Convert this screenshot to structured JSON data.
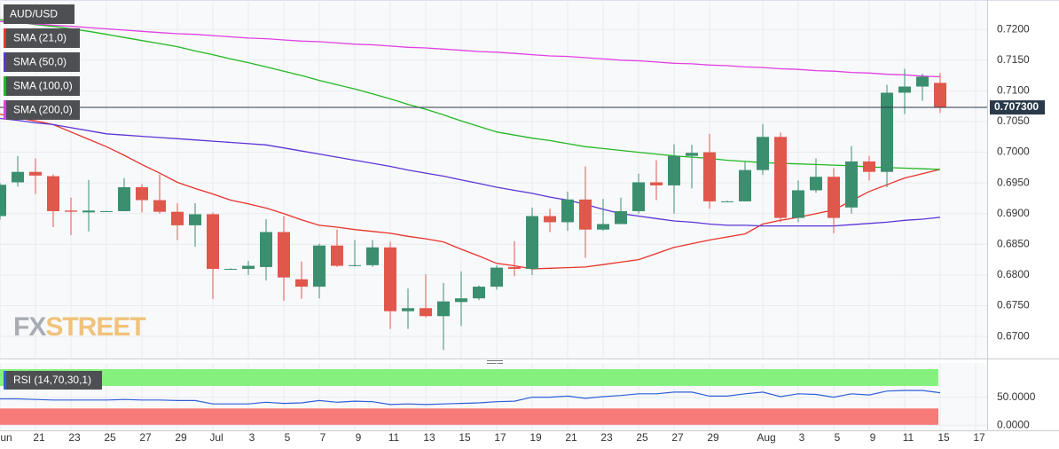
{
  "chart_data": [
    {
      "type": "candlestick",
      "title": "AUD/USD",
      "watermark": [
        "FX",
        "STREET"
      ],
      "categories": [
        "Jun",
        null,
        "21",
        null,
        "23",
        null,
        "25",
        null,
        "27",
        null,
        "29",
        null,
        "Jul",
        null,
        "3",
        null,
        "5",
        null,
        "7",
        null,
        "9",
        null,
        "11",
        null,
        "13",
        null,
        "15",
        null,
        "17",
        null,
        "19",
        null,
        "21",
        null,
        "23",
        null,
        "25",
        null,
        "27",
        null,
        "29",
        null,
        null,
        "Aug",
        null,
        "3",
        null,
        "5",
        null,
        "9",
        null,
        "11",
        null,
        "15",
        null,
        "17"
      ],
      "open": [
        0.6896,
        0.6951,
        0.6968,
        0.6961,
        0.6905,
        0.6902,
        0.6904,
        0.6904,
        0.6943,
        0.6922,
        0.6903,
        0.6881,
        0.6899,
        0.681,
        0.681,
        0.6813,
        0.687,
        0.6793,
        0.6781,
        0.6848,
        0.6816,
        0.6816,
        0.6845,
        0.6741,
        0.6746,
        0.6733,
        0.6756,
        0.6762,
        0.6781,
        0.6813,
        0.681,
        0.6896,
        0.6886,
        0.6923,
        0.6874,
        0.6883,
        0.6904,
        0.6951,
        0.6946,
        0.6994,
        0.7,
        0.692,
        0.692,
        0.6971,
        0.7025,
        0.6893,
        0.6938,
        0.696,
        0.691,
        0.6985,
        0.6968,
        0.7097,
        0.7107,
        0.7113,
        null,
        null
      ],
      "high": [
        0.695,
        0.6994,
        0.699,
        0.6964,
        0.6926,
        0.6955,
        0.6905,
        0.6958,
        0.6948,
        0.6964,
        0.6917,
        0.6917,
        0.6902,
        0.6811,
        0.6823,
        0.6891,
        0.6896,
        0.6822,
        0.6851,
        0.6874,
        0.6857,
        0.6857,
        0.6854,
        0.6778,
        0.6801,
        0.6787,
        0.6806,
        0.6783,
        0.6816,
        0.6855,
        0.691,
        0.6908,
        0.6936,
        0.6977,
        0.6924,
        0.6926,
        0.6965,
        0.6987,
        0.7013,
        0.7012,
        0.703,
        0.6921,
        0.6984,
        0.7046,
        0.7032,
        0.6954,
        0.699,
        0.6974,
        0.701,
        0.6994,
        0.711,
        0.7136,
        0.7128,
        0.7129,
        null,
        null
      ],
      "low": [
        0.689,
        0.6944,
        0.6932,
        0.6878,
        0.6865,
        0.6871,
        0.6903,
        0.6904,
        0.6902,
        0.69,
        0.6857,
        0.6846,
        0.6761,
        0.6809,
        0.68,
        0.6791,
        0.6758,
        0.6761,
        0.6762,
        0.6813,
        0.6814,
        0.6813,
        0.6712,
        0.6712,
        0.6731,
        0.6678,
        0.6717,
        0.6759,
        0.6776,
        0.6798,
        0.68,
        0.687,
        0.6872,
        0.6828,
        0.6872,
        0.6883,
        0.69,
        0.6922,
        0.69,
        0.6941,
        0.6908,
        0.6919,
        0.692,
        0.6963,
        0.6886,
        0.6886,
        0.6934,
        0.6868,
        0.69,
        0.6954,
        0.6943,
        0.7062,
        0.7084,
        0.7064,
        null,
        null
      ],
      "close": [
        0.6947,
        0.6968,
        0.6962,
        0.6904,
        0.6903,
        0.6905,
        0.6904,
        0.6943,
        0.6922,
        0.6903,
        0.6881,
        0.6899,
        0.681,
        0.681,
        0.6815,
        0.687,
        0.6796,
        0.6781,
        0.6848,
        0.6815,
        0.6816,
        0.6845,
        0.6741,
        0.6746,
        0.6733,
        0.6757,
        0.6762,
        0.6781,
        0.6812,
        0.681,
        0.6896,
        0.6886,
        0.6923,
        0.6874,
        0.6883,
        0.6904,
        0.6951,
        0.6946,
        0.6994,
        0.6999,
        0.692,
        0.692,
        0.6971,
        0.7025,
        0.6893,
        0.6938,
        0.696,
        0.6893,
        0.6985,
        0.6968,
        0.7097,
        0.7107,
        0.7123,
        0.7073,
        null,
        null
      ],
      "up_color": "#3b8f6e",
      "down_color": "#e0574c",
      "series": [
        {
          "name": "SMA (21,0)",
          "color": "#e8322a",
          "values": [
            0.7062,
            0.7056,
            0.7051,
            0.7045,
            0.7033,
            0.7021,
            0.7009,
            0.6995,
            0.698,
            0.6966,
            0.6951,
            0.6941,
            0.6932,
            0.6922,
            0.6916,
            0.6909,
            0.69,
            0.689,
            0.6881,
            0.6878,
            0.6874,
            0.6871,
            0.6868,
            0.6863,
            0.6859,
            0.6854,
            0.6842,
            0.6831,
            0.6819,
            0.6815,
            0.681,
            0.6811,
            0.6812,
            0.6813,
            0.6817,
            0.6821,
            0.6825,
            0.6835,
            0.6845,
            0.6851,
            0.6857,
            0.6862,
            0.6867,
            0.6883,
            0.6889,
            0.6894,
            0.69,
            0.6906,
            0.6921,
            0.6936,
            0.6947,
            0.6958,
            0.6965,
            0.6972,
            null,
            null
          ]
        },
        {
          "name": "SMA (50,0)",
          "color": "#5b34d6",
          "values": [
            0.7055,
            0.7052,
            0.7048,
            0.7045,
            0.704,
            0.7035,
            0.703,
            0.7028,
            0.7026,
            0.7024,
            0.7022,
            0.702,
            0.7018,
            0.7016,
            0.7014,
            0.7012,
            0.7007,
            0.7002,
            0.6997,
            0.6992,
            0.6987,
            0.6982,
            0.6977,
            0.6971,
            0.6966,
            0.6961,
            0.6955,
            0.6949,
            0.6943,
            0.6938,
            0.6933,
            0.6927,
            0.6922,
            0.6915,
            0.6907,
            0.69,
            0.6896,
            0.6892,
            0.6888,
            0.6886,
            0.6883,
            0.6881,
            0.6881,
            0.688,
            0.688,
            0.688,
            0.688,
            0.688,
            0.6882,
            0.6884,
            0.6886,
            0.6889,
            0.6891,
            0.6894,
            null,
            null
          ]
        },
        {
          "name": "SMA (100,0)",
          "color": "#22b822",
          "values": [
            0.7216,
            0.7212,
            0.7208,
            0.7205,
            0.7201,
            0.7197,
            0.7192,
            0.7187,
            0.7182,
            0.7177,
            0.7172,
            0.7165,
            0.7159,
            0.7152,
            0.7146,
            0.7139,
            0.7132,
            0.7125,
            0.7117,
            0.711,
            0.7103,
            0.7095,
            0.7087,
            0.7078,
            0.707,
            0.7061,
            0.7051,
            0.7042,
            0.7033,
            0.7028,
            0.7023,
            0.7019,
            0.7014,
            0.7009,
            0.7006,
            0.7003,
            0.7,
            0.6997,
            0.6994,
            0.6992,
            0.699,
            0.6987,
            0.6985,
            0.6983,
            0.6982,
            0.6981,
            0.698,
            0.6979,
            0.6978,
            0.6976,
            0.6975,
            0.6974,
            0.6973,
            0.6972,
            null,
            null
          ]
        },
        {
          "name": "SMA (200,0)",
          "color": "#e040e0",
          "values": [
            0.7213,
            0.7211,
            0.7209,
            0.7207,
            0.7205,
            0.7203,
            0.7201,
            0.7199,
            0.7197,
            0.7195,
            0.7193,
            0.7192,
            0.719,
            0.7188,
            0.7186,
            0.7185,
            0.7183,
            0.7181,
            0.718,
            0.7178,
            0.7176,
            0.7175,
            0.7173,
            0.7171,
            0.717,
            0.7168,
            0.7166,
            0.7164,
            0.7163,
            0.7161,
            0.7159,
            0.7157,
            0.7156,
            0.7154,
            0.7152,
            0.715,
            0.7149,
            0.7147,
            0.7145,
            0.7144,
            0.7142,
            0.7141,
            0.7139,
            0.7138,
            0.7136,
            0.7135,
            0.7133,
            0.7132,
            0.713,
            0.7129,
            0.7127,
            0.7126,
            0.7124,
            0.7123,
            null,
            null
          ]
        }
      ],
      "last_price": 0.7073,
      "last_price_label": "0.707300",
      "last_price_color": "#2b3a4a",
      "ylim": [
        0.6664,
        0.7248
      ],
      "yticks": [
        {
          "value": 0.72,
          "label": "0.7200"
        },
        {
          "value": 0.715,
          "label": "0.7150"
        },
        {
          "value": 0.71,
          "label": "0.7100"
        },
        {
          "value": 0.705,
          "label": "0.7050"
        },
        {
          "value": 0.7,
          "label": "0.7000"
        },
        {
          "value": 0.695,
          "label": "0.6950"
        },
        {
          "value": 0.69,
          "label": "0.6900"
        },
        {
          "value": 0.685,
          "label": "0.6850"
        },
        {
          "value": 0.68,
          "label": "0.6800"
        },
        {
          "value": 0.675,
          "label": "0.6750"
        },
        {
          "value": 0.67,
          "label": "0.6700"
        }
      ],
      "grid": true
    },
    {
      "type": "line",
      "title": "RSI (14,70,30,1)",
      "color": "#2f5fd8",
      "values": [
        47,
        47,
        46,
        45,
        45,
        45,
        45,
        46,
        45,
        45,
        44,
        44,
        38,
        38,
        38,
        41,
        39,
        40,
        44,
        41,
        43,
        42,
        37,
        38,
        37,
        38,
        39,
        40,
        42,
        43,
        50,
        50,
        52,
        48,
        51,
        53,
        56,
        56,
        59,
        59,
        52,
        52,
        56,
        59,
        51,
        56,
        55,
        50,
        56,
        54,
        61,
        62,
        62,
        58,
        null,
        null
      ],
      "upper_band": [
        70,
        100
      ],
      "upper_color": "#86f07e",
      "lower_band": [
        0,
        30
      ],
      "lower_color": "#f77b78",
      "ylim": [
        -9,
        111
      ],
      "yticks": [
        {
          "value": 50,
          "label": "50.0000"
        },
        {
          "value": 0,
          "label": "0.0000"
        }
      ],
      "grid": true
    }
  ]
}
